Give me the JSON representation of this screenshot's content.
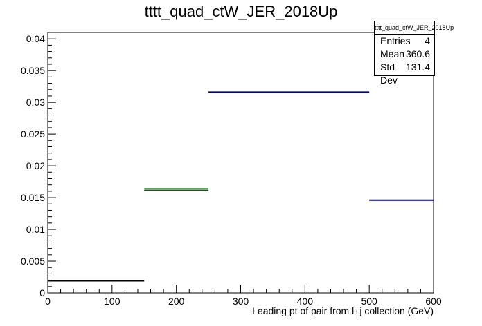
{
  "chart_data": {
    "type": "histogram",
    "title": "tttt_quad_ctW_JER_2018Up",
    "xlabel": "Leading pt of pair from l+j collection (GeV)",
    "ylabel": "",
    "xlim": [
      0,
      600
    ],
    "ylim": [
      0,
      0.041
    ],
    "x_ticks": [
      0,
      100,
      200,
      300,
      400,
      500,
      600
    ],
    "x_tick_labels": [
      "0",
      "100",
      "200",
      "300",
      "400",
      "500",
      "600"
    ],
    "y_ticks": [
      0,
      0.005,
      0.01,
      0.015,
      0.02,
      0.025,
      0.03,
      0.035,
      0.04
    ],
    "y_tick_labels": [
      "0",
      "0.005",
      "0.01",
      "0.015",
      "0.02",
      "0.025",
      "0.03",
      "0.035",
      "0.04"
    ],
    "bins": [
      {
        "x_low": 0,
        "x_high": 150,
        "value": 0.0019,
        "color": "#000000"
      },
      {
        "x_low": 150,
        "x_high": 250,
        "value": 0.0164,
        "color": "#1f8a1f"
      },
      {
        "x_low": 250,
        "x_high": 500,
        "value": 0.0316,
        "color": "#000080"
      },
      {
        "x_low": 500,
        "x_high": 600,
        "value": 0.0146,
        "color": "#000080"
      }
    ],
    "grid": false,
    "legend": "none"
  },
  "stats": {
    "name": "tttt_quad_ctW_JER_2018Up",
    "entries_label": "Entries",
    "entries_value": "4",
    "mean_label": "Mean",
    "mean_value": "360.6",
    "stddev_label": "Std Dev",
    "stddev_value": "131.4"
  }
}
